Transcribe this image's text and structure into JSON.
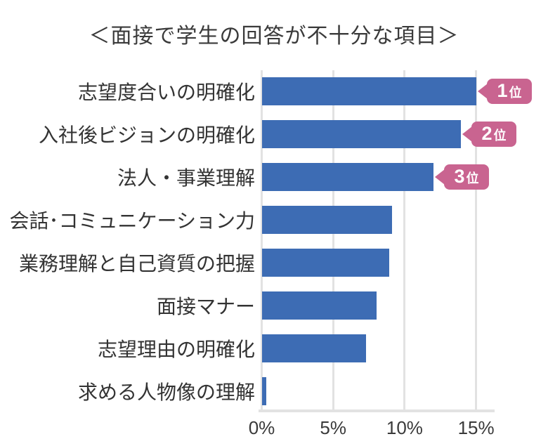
{
  "title": "＜面接で学生の回答が不十分な項目＞",
  "chart_data": {
    "type": "bar",
    "orientation": "horizontal",
    "title": "＜面接で学生の回答が不十分な項目＞",
    "categories": [
      "志望度合いの明確化",
      "入社後ビジョンの明確化",
      "法人・事業理解",
      "会話･コミュニケーション力",
      "業務理解と自己資質の把握",
      "面接マナー",
      "志望理由の明確化",
      "求める人物像の理解"
    ],
    "values": [
      15.0,
      13.9,
      12.0,
      9.1,
      8.9,
      8.0,
      7.3,
      0.3
    ],
    "value_unit": "%",
    "ranks": [
      "1位",
      "2位",
      "3位",
      null,
      null,
      null,
      null,
      null
    ],
    "x_tick_labels": [
      "0%",
      "5%",
      "10%",
      "15%"
    ],
    "xlim": [
      0,
      16.4
    ],
    "grid": true,
    "legend": false,
    "colors": {
      "bar": "#3d6cb4",
      "badge": "#c96490",
      "grid": "#e2e2e2",
      "text": "#333333",
      "background": "#ffffff"
    }
  }
}
